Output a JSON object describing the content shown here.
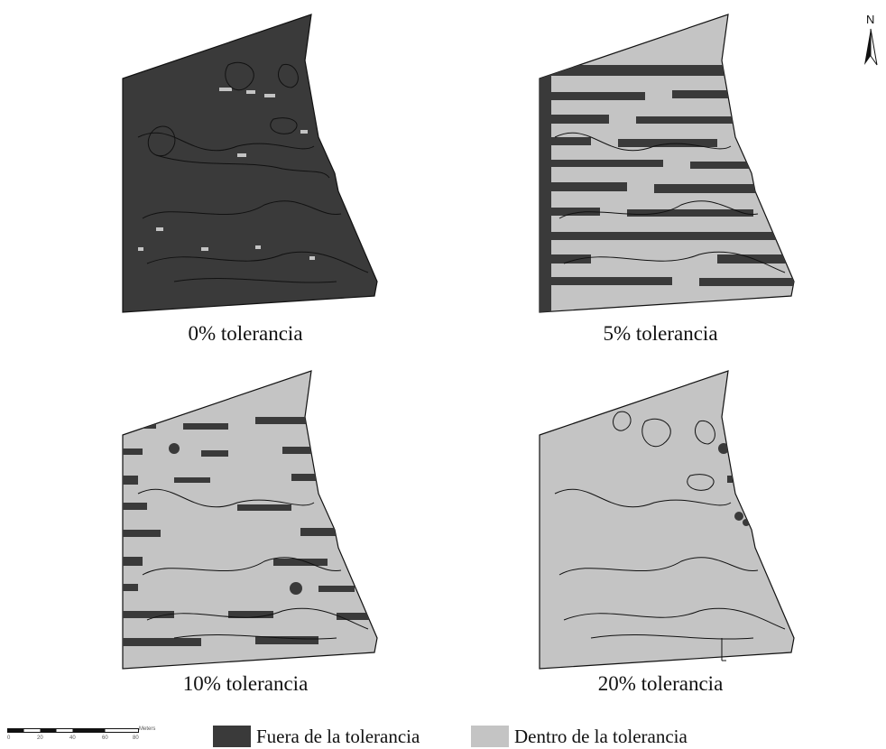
{
  "panels": [
    {
      "caption": "0% tolerancia",
      "tolerance_percent": 0,
      "dominant_class": "Fuera de la tolerancia"
    },
    {
      "caption": "5% tolerancia",
      "tolerance_percent": 5,
      "dominant_class": "mixed"
    },
    {
      "caption": "10% tolerancia",
      "tolerance_percent": 10,
      "dominant_class": "Dentro de la tolerancia"
    },
    {
      "caption": "20% tolerancia",
      "tolerance_percent": 20,
      "dominant_class": "Dentro de la tolerancia"
    }
  ],
  "north_arrow": {
    "label": "N"
  },
  "scale_bar": {
    "ticks": [
      "0",
      "20",
      "40",
      "60",
      "80"
    ],
    "unit": "Meters"
  },
  "legend": [
    {
      "label": "Fuera de la tolerancia",
      "color": "#3a3a3a"
    },
    {
      "label": "Dentro de la tolerancia",
      "color": "#c4c4c4"
    }
  ]
}
